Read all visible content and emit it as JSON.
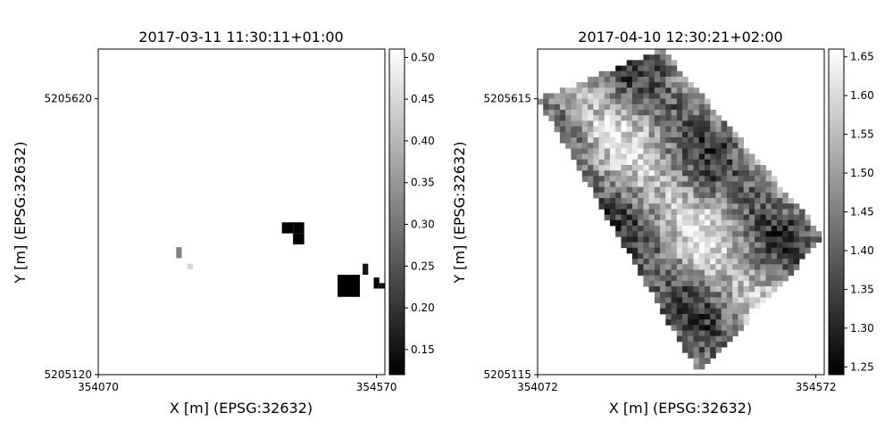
{
  "chart_data": [
    {
      "type": "heatmap",
      "title": "2017-03-11 11:30:11+01:00",
      "xlabel": "X [m] (EPSG:32632)",
      "ylabel": "Y [m] (EPSG:32632)",
      "xlim": [
        354070,
        354585
      ],
      "ylim": [
        5205120,
        5205710
      ],
      "xticks": [
        {
          "value": 354070,
          "label": "354070"
        },
        {
          "value": 354570,
          "label": "354570"
        }
      ],
      "yticks": [
        {
          "value": 5205120,
          "label": "5205120"
        },
        {
          "value": 5205620,
          "label": "5205620"
        }
      ],
      "colormap": "gray",
      "colorbar": {
        "range": [
          0.12,
          0.51
        ],
        "ticks": [
          {
            "value": 0.15,
            "label": "0.15"
          },
          {
            "value": 0.2,
            "label": "0.20"
          },
          {
            "value": 0.25,
            "label": "0.25"
          },
          {
            "value": 0.3,
            "label": "0.30"
          },
          {
            "value": 0.35,
            "label": "0.35"
          },
          {
            "value": 0.4,
            "label": "0.40"
          },
          {
            "value": 0.45,
            "label": "0.45"
          },
          {
            "value": 0.5,
            "label": "0.50"
          }
        ]
      },
      "cells": [
        {
          "x0": 354400,
          "x1": 354420,
          "y0": 5205376,
          "y1": 5205396,
          "value": 0.12
        },
        {
          "x0": 354420,
          "x1": 354440,
          "y0": 5205376,
          "y1": 5205396,
          "value": 0.12
        },
        {
          "x0": 354420,
          "x1": 354440,
          "y0": 5205356,
          "y1": 5205376,
          "value": 0.12
        },
        {
          "x0": 354210,
          "x1": 354220,
          "y0": 5205331,
          "y1": 5205351,
          "value": 0.32
        },
        {
          "x0": 354230,
          "x1": 354240,
          "y0": 5205311,
          "y1": 5205321,
          "value": 0.45
        },
        {
          "x0": 354500,
          "x1": 354540,
          "y0": 5205261,
          "y1": 5205301,
          "value": 0.12
        },
        {
          "x0": 354545,
          "x1": 354555,
          "y0": 5205301,
          "y1": 5205321,
          "value": 0.15
        },
        {
          "x0": 354565,
          "x1": 354575,
          "y0": 5205276,
          "y1": 5205296,
          "value": 0.12
        },
        {
          "x0": 354575,
          "x1": 354585,
          "y0": 5205276,
          "y1": 5205286,
          "value": 0.14
        }
      ]
    },
    {
      "type": "heatmap",
      "title": "2017-04-10 12:30:21+02:00",
      "xlabel": "X [m] (EPSG:32632)",
      "ylabel": "Y [m] (EPSG:32632)",
      "xlim": [
        354072,
        354587
      ],
      "ylim": [
        5205115,
        5205705
      ],
      "xticks": [
        {
          "value": 354072,
          "label": "354072"
        },
        {
          "value": 354572,
          "label": "354572"
        }
      ],
      "yticks": [
        {
          "value": 5205115,
          "label": "5205115"
        },
        {
          "value": 5205615,
          "label": "5205615"
        }
      ],
      "colormap": "gray",
      "colorbar": {
        "range": [
          1.24,
          1.66
        ],
        "ticks": [
          {
            "value": 1.25,
            "label": "1.25"
          },
          {
            "value": 1.3,
            "label": "1.30"
          },
          {
            "value": 1.35,
            "label": "1.35"
          },
          {
            "value": 1.4,
            "label": "1.40"
          },
          {
            "value": 1.45,
            "label": "1.45"
          },
          {
            "value": 1.5,
            "label": "1.50"
          },
          {
            "value": 1.55,
            "label": "1.55"
          },
          {
            "value": 1.6,
            "label": "1.60"
          },
          {
            "value": 1.65,
            "label": "1.65"
          }
        ]
      },
      "field": {
        "x0": 354072,
        "y_top": 5205705,
        "cell": 10,
        "cols": 52,
        "rows": 59,
        "corners": [
          [
            354297,
            5205705
          ],
          [
            354587,
            5205365
          ],
          [
            354362,
            5205115
          ],
          [
            354072,
            5205615
          ]
        ],
        "vmin": 1.25,
        "vmax": 1.65,
        "seed": 20170410
      }
    }
  ]
}
